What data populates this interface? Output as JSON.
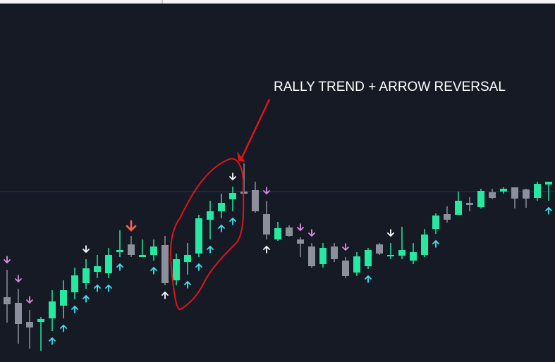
{
  "chart_data": {
    "type": "candlestick",
    "annotation": "RALLY TREND + ARROW REVERSAL",
    "ylim": [
      0,
      514
    ],
    "up_color": "#26e8a0",
    "down_color": "#8b909c",
    "hline": {
      "value": 242,
      "color": "#2b3180"
    },
    "open": [
      92,
      84,
      57,
      57,
      62,
      80,
      99,
      112,
      128,
      126,
      156,
      167,
      149,
      152,
      166,
      116,
      142,
      154,
      202,
      214,
      231,
      242,
      244,
      210,
      174,
      191,
      174,
      164,
      139,
      164,
      144,
      127,
      136,
      167,
      150,
      151,
      144,
      152,
      189,
      210,
      209,
      226,
      220,
      241,
      242,
      248,
      245,
      233,
      252
    ],
    "high": [
      131,
      104,
      74,
      64,
      102,
      116,
      134,
      146,
      152,
      162,
      187,
      179,
      174,
      174,
      179,
      154,
      169,
      209,
      229,
      239,
      249,
      282,
      256,
      229,
      199,
      194,
      177,
      169,
      169,
      169,
      149,
      156,
      162,
      169,
      169,
      192,
      169,
      189,
      211,
      221,
      242,
      234,
      246,
      246,
      248,
      248,
      246,
      256,
      256
    ],
    "low": [
      56,
      26,
      19,
      16,
      44,
      62,
      89,
      104,
      119,
      119,
      149,
      149,
      149,
      144,
      109,
      109,
      124,
      149,
      174,
      204,
      214,
      239,
      212,
      174,
      172,
      178,
      149,
      134,
      134,
      142,
      119,
      122,
      132,
      152,
      146,
      146,
      139,
      149,
      182,
      198,
      209,
      214,
      218,
      231,
      239,
      218,
      219,
      229,
      229
    ],
    "close": [
      82,
      54,
      49,
      61,
      86,
      102,
      123,
      133,
      136,
      152,
      159,
      152,
      152,
      164,
      112,
      146,
      152,
      204,
      214,
      226,
      240,
      239,
      214,
      181,
      190,
      179,
      168,
      136,
      162,
      146,
      122,
      150,
      159,
      154,
      152,
      159,
      156,
      181,
      208,
      202,
      229,
      223,
      243,
      233,
      246,
      232,
      232,
      253,
      256
    ],
    "signals": [
      {
        "index": 0,
        "direction": "down",
        "color": "#e08be8"
      },
      {
        "index": 1,
        "direction": "down",
        "color": "#e08be8"
      },
      {
        "index": 2,
        "direction": "down",
        "color": "#e08be8"
      },
      {
        "index": 4,
        "direction": "up",
        "color": "#3fe3f2"
      },
      {
        "index": 5,
        "direction": "up",
        "color": "#3fe3f2"
      },
      {
        "index": 6,
        "direction": "up",
        "color": "#3fe3f2"
      },
      {
        "index": 7,
        "direction": "up",
        "color": "#3fe3f2"
      },
      {
        "index": 7,
        "direction": "down",
        "color": "#ffffff"
      },
      {
        "index": 8,
        "direction": "up",
        "color": "#3fe3f2"
      },
      {
        "index": 9,
        "direction": "up",
        "color": "#3fe3f2"
      },
      {
        "index": 10,
        "direction": "up",
        "color": "#3fe3f2"
      },
      {
        "index": 11,
        "direction": "down",
        "color": "#f0624c"
      },
      {
        "index": 13,
        "direction": "up",
        "color": "#3fe3f2"
      },
      {
        "index": 14,
        "direction": "up",
        "color": "#ffffff"
      },
      {
        "index": 16,
        "direction": "up",
        "color": "#3fe3f2"
      },
      {
        "index": 17,
        "direction": "up",
        "color": "#3fe3f2"
      },
      {
        "index": 18,
        "direction": "up",
        "color": "#3fe3f2"
      },
      {
        "index": 19,
        "direction": "up",
        "color": "#3fe3f2"
      },
      {
        "index": 20,
        "direction": "up",
        "color": "#3fe3f2"
      },
      {
        "index": 20,
        "direction": "down",
        "color": "#ffffff"
      },
      {
        "index": 23,
        "direction": "down",
        "color": "#e08be8"
      },
      {
        "index": 23,
        "direction": "up",
        "color": "#ffffff"
      },
      {
        "index": 26,
        "direction": "down",
        "color": "#e08be8"
      },
      {
        "index": 27,
        "direction": "down",
        "color": "#e08be8"
      },
      {
        "index": 30,
        "direction": "down",
        "color": "#e08be8"
      },
      {
        "index": 32,
        "direction": "up",
        "color": "#3fe3f2"
      },
      {
        "index": 34,
        "direction": "down",
        "color": "#ffffff"
      },
      {
        "index": 38,
        "direction": "up",
        "color": "#3fe3f2"
      },
      {
        "index": 48,
        "direction": "up",
        "color": "#3fe3f2"
      }
    ]
  }
}
